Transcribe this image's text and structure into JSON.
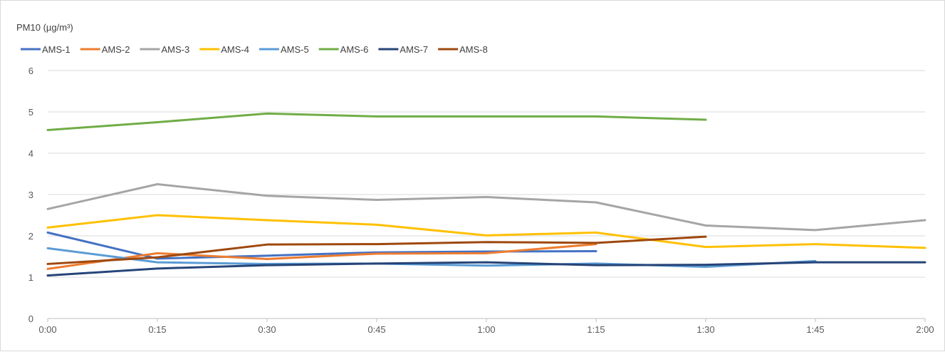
{
  "chart_data": {
    "type": "line",
    "title": "",
    "ylabel": "PM10 (µg/m³)",
    "xlabel": "",
    "categories": [
      "0:00",
      "0:15",
      "0:30",
      "0:45",
      "1:00",
      "1:15",
      "1:30",
      "1:45",
      "2:00"
    ],
    "ylim": [
      0,
      6
    ],
    "yticks": [
      0,
      1,
      2,
      3,
      4,
      5,
      6
    ],
    "grid": true,
    "legend_position": "top-left",
    "series": [
      {
        "name": "AMS-1",
        "color": "#4472C4",
        "values": [
          2.08,
          1.45,
          1.52,
          1.6,
          1.62,
          1.63,
          null,
          null,
          null
        ]
      },
      {
        "name": "AMS-2",
        "color": "#ED7D31",
        "values": [
          1.2,
          1.58,
          1.44,
          1.57,
          1.58,
          1.8,
          null,
          null,
          null
        ]
      },
      {
        "name": "AMS-3",
        "color": "#A5A5A5",
        "values": [
          2.65,
          3.25,
          2.97,
          2.87,
          2.94,
          2.81,
          2.25,
          2.14,
          2.38
        ]
      },
      {
        "name": "AMS-4",
        "color": "#FFC000",
        "values": [
          2.2,
          2.5,
          2.38,
          2.27,
          2.01,
          2.08,
          1.73,
          1.8,
          1.71
        ]
      },
      {
        "name": "AMS-5",
        "color": "#5B9BD5",
        "values": [
          1.7,
          1.36,
          1.32,
          1.33,
          1.28,
          1.33,
          1.25,
          1.39,
          null
        ]
      },
      {
        "name": "AMS-6",
        "color": "#70AD47",
        "values": [
          4.56,
          4.75,
          4.96,
          4.89,
          4.89,
          4.89,
          4.81,
          null,
          null
        ]
      },
      {
        "name": "AMS-7",
        "color": "#264478",
        "values": [
          1.04,
          1.21,
          1.29,
          1.33,
          1.36,
          1.29,
          1.3,
          1.36,
          1.36
        ]
      },
      {
        "name": "AMS-8",
        "color": "#9E480E",
        "values": [
          1.32,
          1.48,
          1.79,
          1.8,
          1.85,
          1.83,
          1.98,
          null,
          null
        ]
      }
    ]
  }
}
